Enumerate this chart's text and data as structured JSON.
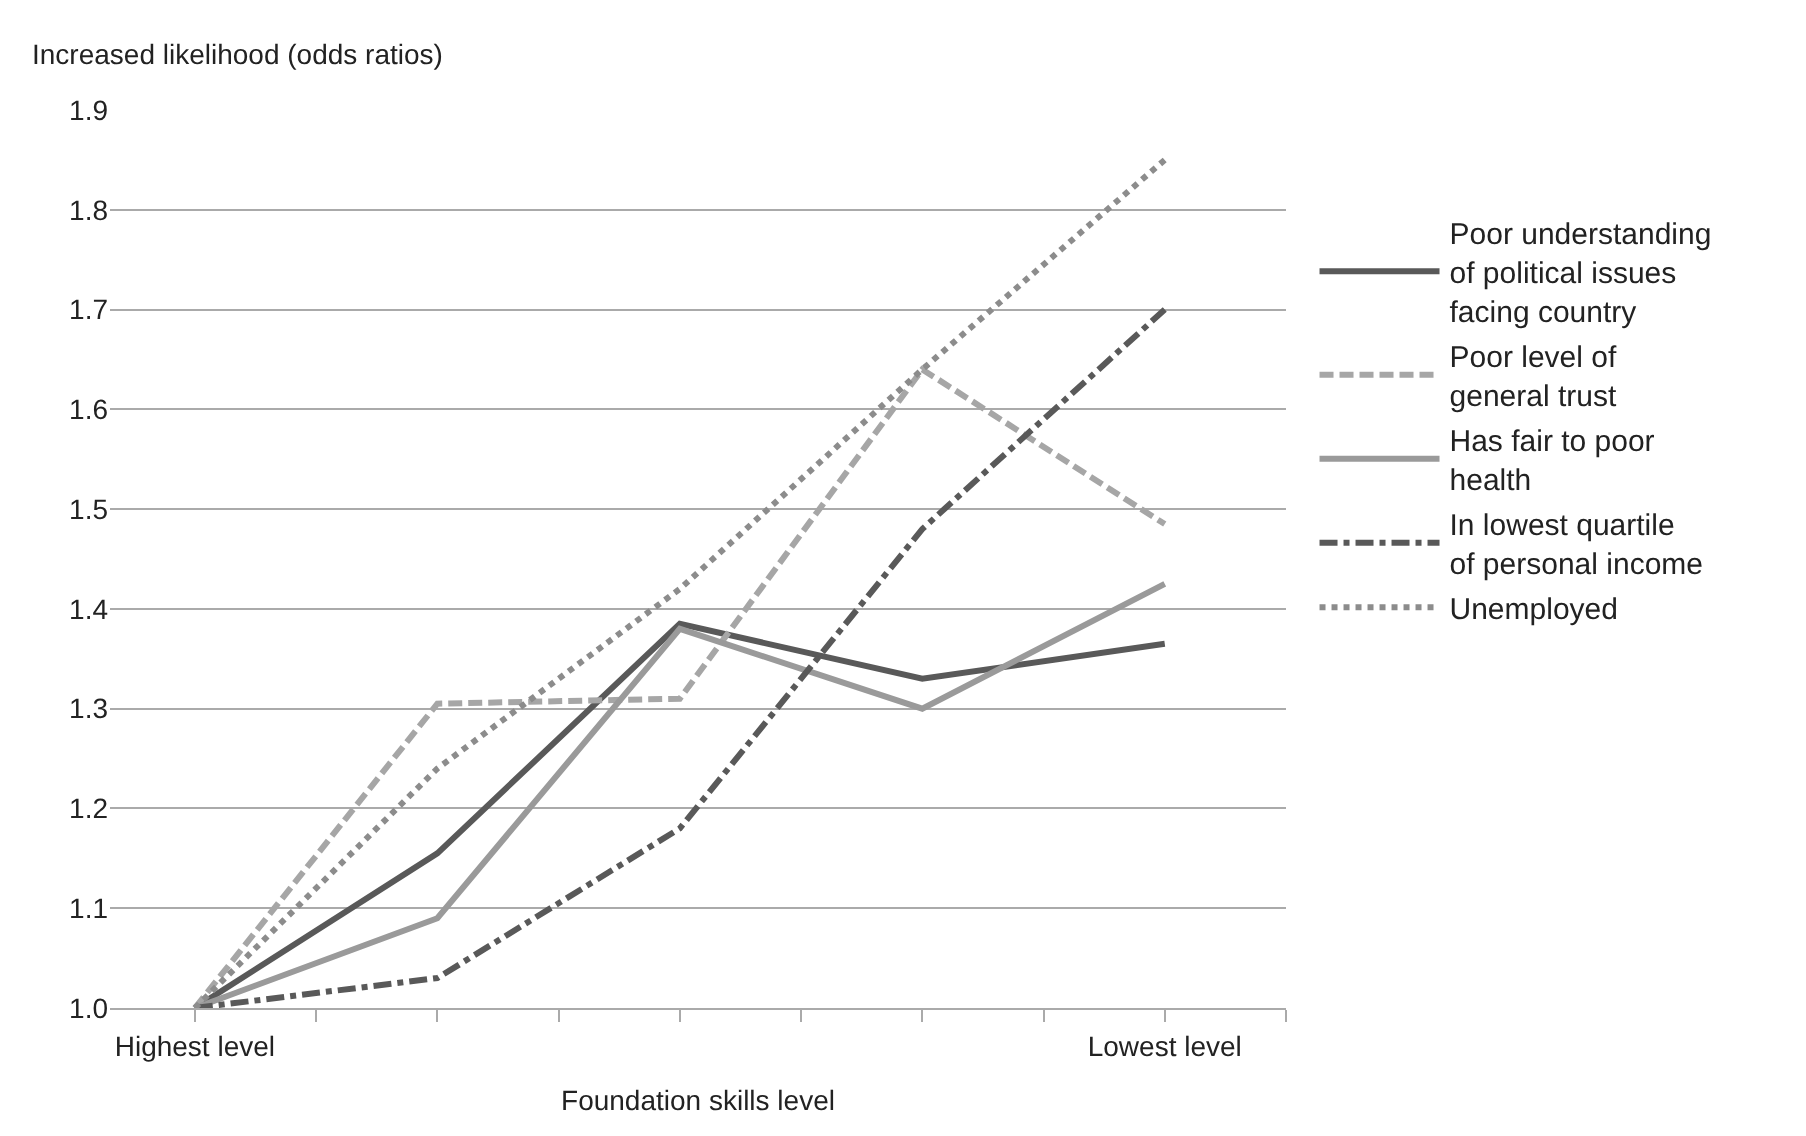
{
  "chart_data": {
    "type": "line",
    "ylabel": "Increased likelihood (odds ratios)",
    "xlabel": "Foundation skills level",
    "categories": [
      "Highest level",
      null,
      null,
      null,
      "Lowest level"
    ],
    "series": [
      {
        "name": "Poor understanding of political issues facing country",
        "color": "#595959",
        "line_style": "solid",
        "values": [
          1.0,
          1.155,
          1.385,
          1.33,
          1.365
        ]
      },
      {
        "name": "Poor level of general trust",
        "color": "#a6a6a6",
        "line_style": "dashed",
        "values": [
          1.0,
          1.305,
          1.31,
          1.64,
          1.485
        ]
      },
      {
        "name": "Has fair to poor health",
        "color": "#9a9a9a",
        "line_style": "solid",
        "values": [
          1.0,
          1.09,
          1.38,
          1.3,
          1.425
        ]
      },
      {
        "name": "In lowest quartile of personal income",
        "color": "#595959",
        "line_style": "dashdot",
        "values": [
          1.0,
          1.03,
          1.18,
          1.48,
          1.7
        ]
      },
      {
        "name": "Unemployed",
        "color": "#8c8c8c",
        "line_style": "dotted",
        "values": [
          1.0,
          1.24,
          1.42,
          1.64,
          1.85
        ]
      }
    ],
    "ylim": [
      1.0,
      1.9
    ],
    "yticks": [
      {
        "value": 1.0,
        "label": "1.0"
      },
      {
        "value": 1.1,
        "label": "1.1"
      },
      {
        "value": 1.2,
        "label": "1.2"
      },
      {
        "value": 1.3,
        "label": "1.3"
      },
      {
        "value": 1.4,
        "label": "1.4"
      },
      {
        "value": 1.5,
        "label": "1.5"
      },
      {
        "value": 1.6,
        "label": "1.6"
      },
      {
        "value": 1.7,
        "label": "1.7"
      },
      {
        "value": 1.8,
        "label": "1.8"
      },
      {
        "value": 1.9,
        "label": "1.9"
      }
    ],
    "grid": "y",
    "legend": "right",
    "marker": "none"
  }
}
